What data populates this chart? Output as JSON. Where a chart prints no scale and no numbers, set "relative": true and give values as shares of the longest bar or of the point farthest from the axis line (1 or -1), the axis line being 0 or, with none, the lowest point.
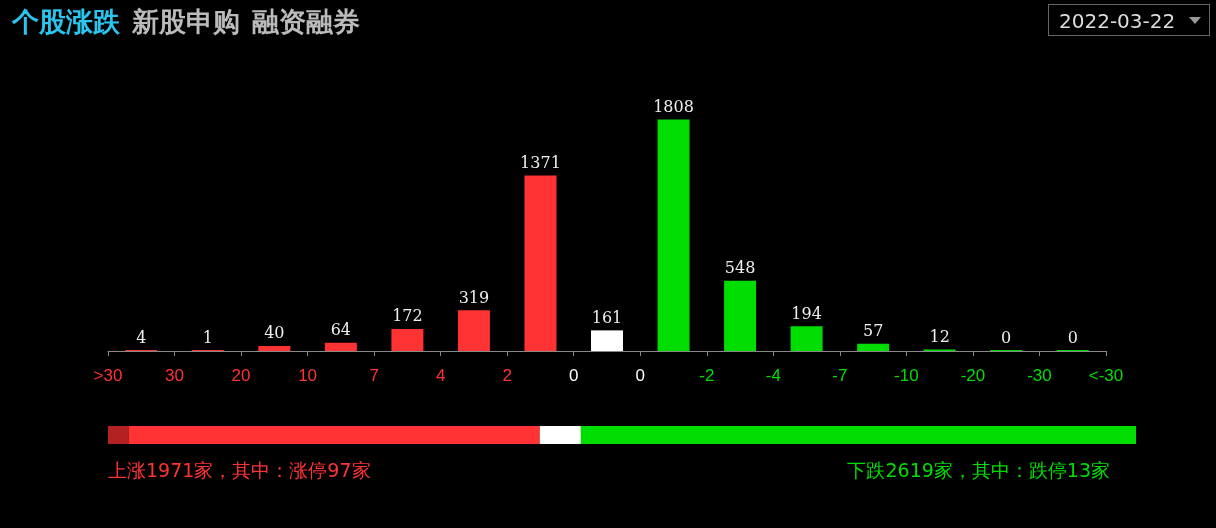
{
  "chart_data": [
    {
      "type": "bar",
      "title": "个股涨跌",
      "annotations": [
        "新股申购",
        "融资融券",
        "2022-03-22"
      ],
      "categories": [
        ">30",
        "30",
        "20",
        "10",
        "7",
        "4",
        "2",
        "0",
        "0",
        "-2",
        "-4",
        "-7",
        "-10",
        "-20",
        "-30",
        "<-30"
      ],
      "values": [
        4,
        1,
        40,
        64,
        172,
        319,
        1371,
        161,
        1808,
        548,
        194,
        57,
        12,
        0,
        0,
        null
      ],
      "colors": [
        "#ff3333",
        "#ff3333",
        "#ff3333",
        "#ff3333",
        "#ff3333",
        "#ff3333",
        "#ff3333",
        "#ffffff",
        "#00dd00",
        "#00dd00",
        "#00dd00",
        "#00dd00",
        "#00dd00",
        "#00dd00",
        "#00dd00",
        "#00dd00"
      ],
      "tick_labels": "x",
      "data_labels": true,
      "grid": false
    },
    {
      "type": "bar",
      "orientation": "horizontal",
      "stacked": true,
      "relative": true,
      "categories": [
        null
      ],
      "series": [
        {
          "color": "#b22222",
          "values": [
            0.02
          ]
        },
        {
          "color": "#ff3333",
          "values": [
            0.4
          ]
        },
        {
          "color": "#ffffff",
          "values": [
            0.04
          ]
        },
        {
          "color": "#00dd00",
          "values": [
            0.54
          ]
        }
      ],
      "annotations": [
        "上涨1971家，其中：涨停97家",
        "下跌2619家，其中：跌停13家"
      ],
      "tick_labels": false,
      "grid": false
    }
  ]
}
